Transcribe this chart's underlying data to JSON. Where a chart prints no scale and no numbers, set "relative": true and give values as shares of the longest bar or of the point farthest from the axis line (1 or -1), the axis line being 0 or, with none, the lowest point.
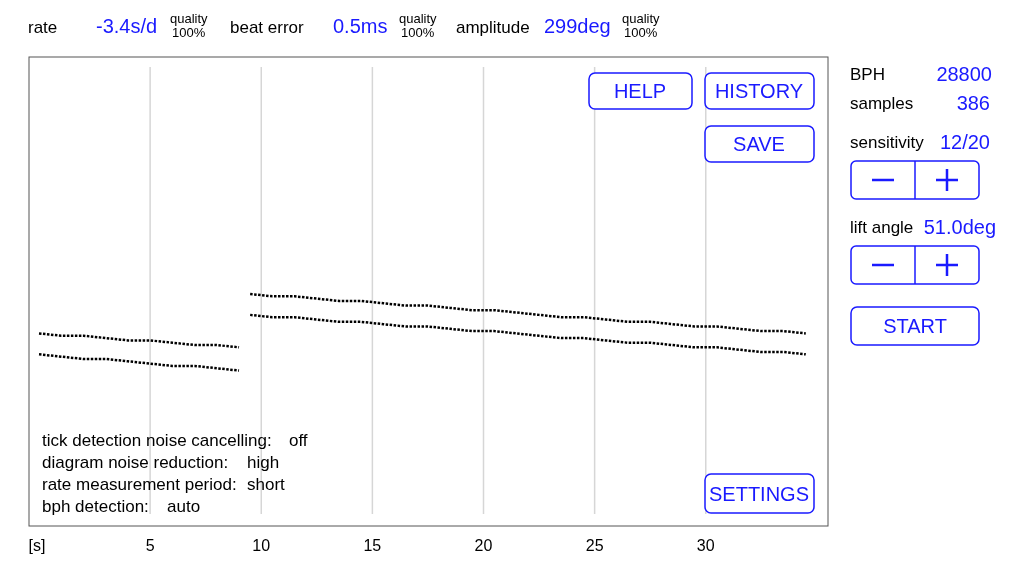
{
  "chart_data": {
    "type": "line",
    "relative": true,
    "xlabel": "[s]",
    "xlim": [
      -0.45,
      35.5
    ],
    "xticks": [
      5,
      10,
      15,
      20,
      25,
      30
    ],
    "grid": "x",
    "legend": false,
    "line_style": "dotted",
    "tick_labels": "x",
    "series": [
      {
        "color": "#000000",
        "x": [
          0,
          1,
          2,
          3,
          4,
          5,
          6,
          7,
          8,
          9
        ],
        "values": [
          0.83,
          0.82,
          0.82,
          0.81,
          0.8,
          0.8,
          0.79,
          0.78,
          0.78,
          0.77
        ]
      },
      {
        "color": "#000000",
        "x": [
          9.5,
          10.5,
          11.5,
          12.5,
          13.5,
          14.5,
          15.5,
          16.5,
          17.5,
          18.5,
          19.5,
          20.5,
          21.5,
          22.5,
          23.5,
          24.5,
          25.5,
          26.5,
          27.5,
          28.5,
          29.5,
          30.5,
          31.5,
          32.5,
          33.5,
          34.5
        ],
        "values": [
          1.0,
          0.99,
          0.99,
          0.98,
          0.97,
          0.97,
          0.96,
          0.95,
          0.95,
          0.94,
          0.93,
          0.93,
          0.92,
          0.91,
          0.9,
          0.9,
          0.89,
          0.88,
          0.88,
          0.87,
          0.86,
          0.86,
          0.85,
          0.84,
          0.84,
          0.83
        ]
      },
      {
        "color": "#000000",
        "x": [
          0,
          1,
          2,
          3,
          4,
          5,
          6,
          7,
          8,
          9
        ],
        "values": [
          0.74,
          0.73,
          0.72,
          0.72,
          0.71,
          0.7,
          0.69,
          0.69,
          0.68,
          0.67
        ]
      },
      {
        "color": "#000000",
        "x": [
          9.5,
          10.5,
          11.5,
          12.5,
          13.5,
          14.5,
          15.5,
          16.5,
          17.5,
          18.5,
          19.5,
          20.5,
          21.5,
          22.5,
          23.5,
          24.5,
          25.5,
          26.5,
          27.5,
          28.5,
          29.5,
          30.5,
          31.5,
          32.5,
          33.5,
          34.5
        ],
        "values": [
          0.91,
          0.9,
          0.9,
          0.89,
          0.88,
          0.88,
          0.87,
          0.86,
          0.86,
          0.85,
          0.84,
          0.84,
          0.83,
          0.82,
          0.81,
          0.81,
          0.8,
          0.79,
          0.79,
          0.78,
          0.77,
          0.77,
          0.76,
          0.75,
          0.75,
          0.74
        ]
      }
    ],
    "annotations": [
      "rate",
      "-3.4s/d",
      "quality",
      "100%",
      "beat error",
      "0.5ms",
      "quality",
      "100%",
      "amplitude",
      "299deg",
      "quality",
      "100%",
      "BPH",
      "28800",
      "samples",
      "386",
      "sensitivity",
      "12/20",
      "lift angle",
      "51.0deg",
      "HELP",
      "HISTORY",
      "SAVE",
      "START",
      "SETTINGS",
      "tick detection noise cancelling:",
      "off",
      "diagram noise reduction:",
      "high",
      "rate measurement period:",
      "short",
      "bph detection:",
      "auto"
    ]
  }
}
